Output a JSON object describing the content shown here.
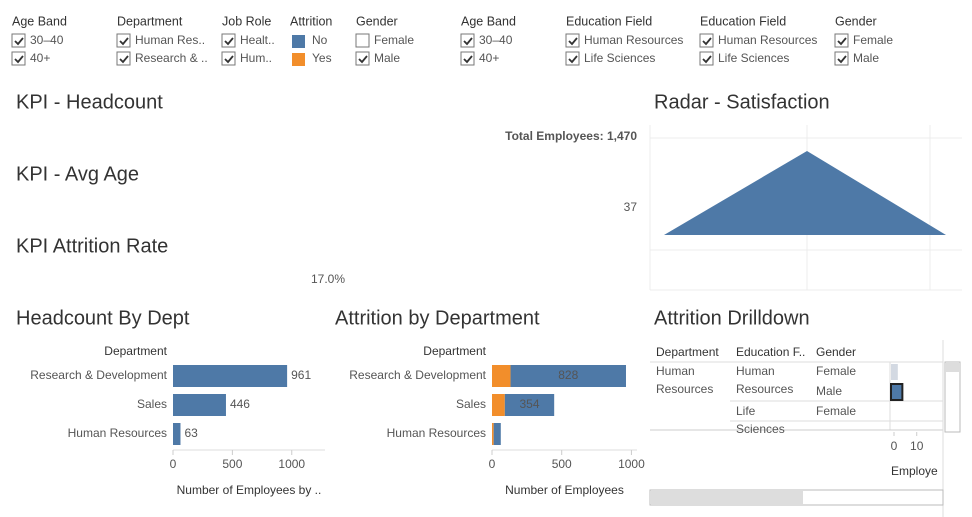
{
  "filters": [
    {
      "title": "Age Band",
      "items": [
        {
          "label": "30–40",
          "checked": true
        },
        {
          "label": "40+",
          "checked": true
        }
      ]
    },
    {
      "title": "Department",
      "items": [
        {
          "label": "Human Res..",
          "checked": true
        },
        {
          "label": "Research & ..",
          "checked": true
        }
      ]
    },
    {
      "title": "Job Role",
      "items": [
        {
          "label": "Healt..",
          "checked": true
        },
        {
          "label": "Hum..",
          "checked": true
        }
      ]
    },
    {
      "title": "Attrition",
      "items": [
        {
          "label": "No",
          "color": "#4e79a7"
        },
        {
          "label": "Yes",
          "color": "#f28e2b"
        }
      ]
    },
    {
      "title": "Gender",
      "items": [
        {
          "label": "Female",
          "checked": false
        },
        {
          "label": "Male",
          "checked": true
        }
      ]
    },
    {
      "title": "Age Band",
      "items": [
        {
          "label": "30–40",
          "checked": true
        },
        {
          "label": "40+",
          "checked": true
        }
      ]
    },
    {
      "title": "Education Field",
      "items": [
        {
          "label": "Human Resources",
          "checked": true
        },
        {
          "label": "Life Sciences",
          "checked": true
        }
      ]
    },
    {
      "title": "Education Field",
      "items": [
        {
          "label": "Human Resources",
          "checked": true
        },
        {
          "label": "Life Sciences",
          "checked": true
        }
      ]
    },
    {
      "title": "Gender",
      "items": [
        {
          "label": "Female",
          "checked": true
        },
        {
          "label": "Male",
          "checked": true
        }
      ]
    }
  ],
  "kpis": [
    {
      "title": "KPI - Headcount",
      "value": "Total Employees: 1,470"
    },
    {
      "title": "KPI - Avg Age"
    },
    {
      "title": "KPI Attrition Rate",
      "value": "17.0%"
    }
  ],
  "chart_data": [
    {
      "type": "radar",
      "title": "Radar - Satisfaction",
      "annotation": "37",
      "color": "#4e79a7"
    },
    {
      "type": "hbar",
      "title": "Headcount By Dept",
      "y_header": "Department",
      "x_label": "Number of Employees by ..",
      "categories": [
        "Research & Development",
        "Sales",
        "Human Resources"
      ],
      "series": [
        {
          "name": "Headcount",
          "color": "#4e79a7",
          "values": [
            961,
            446,
            63
          ]
        }
      ],
      "xlim": [
        0,
        1280
      ],
      "xticks": [
        0,
        500,
        1000
      ],
      "labels_outside": true
    },
    {
      "type": "hbar",
      "title": "Attrition by Department",
      "y_header": "Department",
      "x_label": "Number of Employees",
      "categories": [
        "Research & Development",
        "Sales",
        "Human Resources"
      ],
      "series": [
        {
          "name": "Yes",
          "color": "#f28e2b",
          "values": [
            133,
            92,
            12
          ]
        },
        {
          "name": "No",
          "color": "#4e79a7",
          "values": [
            828,
            354,
            51
          ],
          "value_labels": [
            "828",
            "354",
            null
          ]
        }
      ],
      "xlim": [
        0,
        1040
      ],
      "xticks": [
        0,
        500,
        1000
      ],
      "stacked": true
    },
    {
      "type": "drilldown",
      "title": "Attrition Drilldown",
      "headers": [
        "Department",
        "Education F..",
        "Gender"
      ],
      "rows": [
        [
          "Human Resources",
          "Human Resources",
          "Female"
        ],
        [
          null,
          null,
          "Male"
        ],
        [
          null,
          "Life Sciences",
          "Female"
        ]
      ],
      "values": [
        3,
        5,
        null
      ],
      "colors": [
        "#d3d9e2",
        "#4e79a7",
        "#d3d9e2"
      ],
      "xlim": [
        0,
        22
      ],
      "xticks": [
        0,
        10
      ],
      "x_label": "Employe"
    }
  ]
}
